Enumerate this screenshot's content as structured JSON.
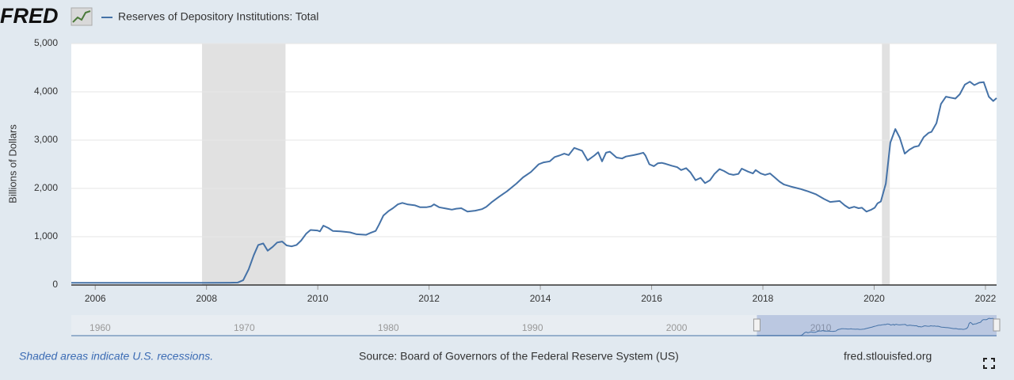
{
  "logo": "FRED",
  "chart_data": {
    "type": "line",
    "y_label": "Billions of Dollars",
    "x": [
      2005.57,
      2006,
      2007,
      2008,
      2008.42,
      2008.56,
      2008.66,
      2008.76,
      2008.85,
      2008.93,
      2009.02,
      2009.1,
      2009.19,
      2009.27,
      2009.36,
      2009.44,
      2009.53,
      2009.62,
      2009.7,
      2009.79,
      2009.87,
      2009.99,
      2010.04,
      2010.1,
      2010.19,
      2010.27,
      2010.41,
      2010.58,
      2010.7,
      2010.87,
      2010.95,
      2011.04,
      2011.1,
      2011.18,
      2011.27,
      2011.35,
      2011.44,
      2011.52,
      2011.61,
      2011.75,
      2011.84,
      2011.95,
      2012.04,
      2012.09,
      2012.18,
      2012.32,
      2012.41,
      2012.49,
      2012.58,
      2012.69,
      2012.83,
      2012.95,
      2013.03,
      2013.12,
      2013.26,
      2013.4,
      2013.57,
      2013.69,
      2013.83,
      2013.97,
      2014.06,
      2014.17,
      2014.26,
      2014.34,
      2014.43,
      2014.51,
      2014.61,
      2014.75,
      2014.85,
      2014.97,
      2015.04,
      2015.11,
      2015.18,
      2015.25,
      2015.37,
      2015.47,
      2015.54,
      2015.68,
      2015.79,
      2015.85,
      2015.89,
      2015.96,
      2016.04,
      2016.11,
      2016.18,
      2016.25,
      2016.36,
      2016.46,
      2016.53,
      2016.62,
      2016.7,
      2016.79,
      2016.88,
      2016.96,
      2017.05,
      2017.13,
      2017.22,
      2017.3,
      2017.39,
      2017.47,
      2017.56,
      2017.62,
      2017.73,
      2017.82,
      2017.87,
      2017.96,
      2018.04,
      2018.13,
      2018.21,
      2018.3,
      2018.38,
      2018.5,
      2018.67,
      2018.81,
      2018.95,
      2019.1,
      2019.21,
      2019.38,
      2019.47,
      2019.55,
      2019.64,
      2019.72,
      2019.78,
      2019.86,
      2019.95,
      2020.01,
      2020.06,
      2020.12,
      2020.21,
      2020.29,
      2020.38,
      2020.46,
      2020.55,
      2020.63,
      2020.72,
      2020.8,
      2020.89,
      2020.98,
      2021.03,
      2021.12,
      2021.2,
      2021.29,
      2021.37,
      2021.46,
      2021.54,
      2021.63,
      2021.72,
      2021.8,
      2021.89,
      2021.97,
      2022.06,
      2022.14,
      2022.2
    ],
    "series": [
      {
        "name": "Reserves of Depository Institutions: Total",
        "color": "#4572a7",
        "values": [
          45,
          45,
          44,
          44,
          47,
          50,
          100,
          330,
          620,
          830,
          860,
          710,
          790,
          880,
          900,
          820,
          800,
          830,
          920,
          1060,
          1140,
          1130,
          1110,
          1230,
          1180,
          1120,
          1110,
          1090,
          1050,
          1040,
          1080,
          1120,
          1250,
          1440,
          1530,
          1590,
          1670,
          1700,
          1670,
          1650,
          1610,
          1610,
          1630,
          1670,
          1610,
          1580,
          1560,
          1580,
          1590,
          1520,
          1540,
          1570,
          1620,
          1710,
          1830,
          1940,
          2100,
          2230,
          2340,
          2500,
          2540,
          2560,
          2650,
          2680,
          2720,
          2690,
          2840,
          2780,
          2580,
          2680,
          2750,
          2560,
          2740,
          2760,
          2640,
          2620,
          2660,
          2690,
          2720,
          2740,
          2680,
          2500,
          2460,
          2520,
          2530,
          2510,
          2470,
          2440,
          2380,
          2420,
          2330,
          2170,
          2220,
          2110,
          2170,
          2300,
          2400,
          2360,
          2300,
          2280,
          2300,
          2410,
          2350,
          2310,
          2380,
          2310,
          2280,
          2310,
          2230,
          2140,
          2080,
          2040,
          1990,
          1940,
          1880,
          1780,
          1720,
          1740,
          1650,
          1590,
          1620,
          1590,
          1600,
          1520,
          1560,
          1600,
          1690,
          1730,
          2100,
          2950,
          3230,
          3050,
          2720,
          2800,
          2860,
          2880,
          3060,
          3150,
          3170,
          3350,
          3750,
          3900,
          3880,
          3860,
          3950,
          4150,
          4210,
          4140,
          4190,
          4200,
          3900,
          3810,
          3870
        ]
      }
    ],
    "xlim": [
      2005.57,
      2022.2
    ],
    "xticks": [
      2006,
      2008,
      2010,
      2012,
      2014,
      2016,
      2018,
      2020,
      2022
    ],
    "ylim": [
      0,
      5000
    ],
    "yticks": [
      0,
      {
        "value": 1000,
        "label": "1,000"
      },
      {
        "value": 2000,
        "label": "2,000"
      },
      {
        "value": 3000,
        "label": "3,000"
      },
      {
        "value": 4000,
        "label": "4,000"
      },
      {
        "value": 5000,
        "label": "5,000"
      }
    ],
    "grid": true,
    "recessions": [
      {
        "start": 2007.92,
        "end": 2009.42
      },
      {
        "start": 2020.14,
        "end": 2020.28
      }
    ],
    "recession_color": "#e1e1e1",
    "navigator": {
      "xlim": [
        1958,
        2022.2
      ],
      "xticks": [
        1960,
        1970,
        1980,
        1990,
        2000,
        2010
      ]
    }
  },
  "footer": {
    "note": "Shaded areas indicate U.S. recessions.",
    "source": "Source: Board of Governors of the Federal Reserve System (US)",
    "site": "fred.stlouisfed.org"
  }
}
